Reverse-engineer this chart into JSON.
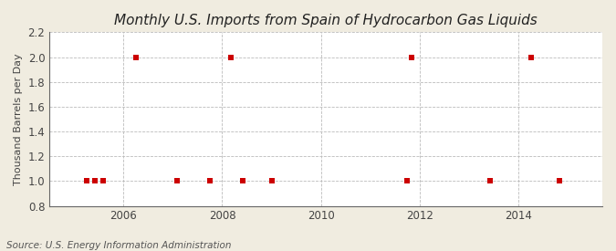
{
  "title": "Monthly U.S. Imports from Spain of Hydrocarbon Gas Liquids",
  "ylabel": "Thousand Barrels per Day",
  "source": "Source: U.S. Energy Information Administration",
  "background_color": "#f0ece0",
  "plot_area_color": "#ffffff",
  "ylim": [
    0.8,
    2.2
  ],
  "yticks": [
    0.8,
    1.0,
    1.2,
    1.4,
    1.6,
    1.8,
    2.0,
    2.2
  ],
  "xlim_start": 2004.5,
  "xlim_end": 2015.7,
  "xticks": [
    2006,
    2008,
    2010,
    2012,
    2014
  ],
  "data_points": [
    [
      2005.25,
      1.0
    ],
    [
      2005.42,
      1.0
    ],
    [
      2005.58,
      1.0
    ],
    [
      2006.25,
      2.0
    ],
    [
      2007.08,
      1.0
    ],
    [
      2007.75,
      1.0
    ],
    [
      2008.17,
      2.0
    ],
    [
      2008.42,
      1.0
    ],
    [
      2009.0,
      1.0
    ],
    [
      2011.75,
      1.0
    ],
    [
      2011.83,
      2.0
    ],
    [
      2013.42,
      1.0
    ],
    [
      2014.25,
      2.0
    ],
    [
      2014.83,
      1.0
    ]
  ],
  "marker_color": "#cc0000",
  "marker_size": 18,
  "marker_shape": "s",
  "grid_color": "#bbbbbb",
  "axis_line_color": "#666666",
  "tick_color": "#444444",
  "title_fontsize": 11,
  "label_fontsize": 8,
  "tick_fontsize": 8.5,
  "source_fontsize": 7.5
}
